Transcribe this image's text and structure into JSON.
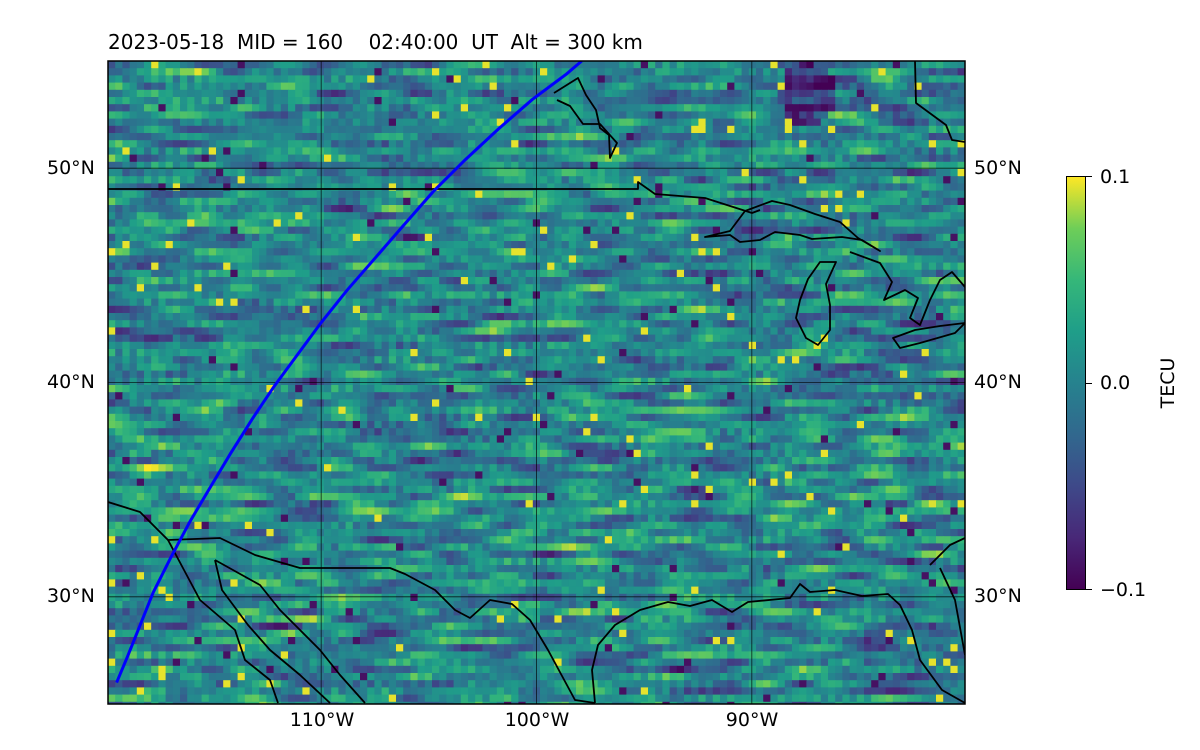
{
  "title": "2023-05-18  MID = 160    02:40:00  UT  Alt = 300 km",
  "map": {
    "extent": {
      "lon_min": -119.9,
      "lon_max": -80.1,
      "lat_min": 25.0,
      "lat_max": 55.0
    },
    "gridlines": {
      "lons": [
        -110,
        -100,
        -90
      ],
      "lats": [
        30,
        40,
        50
      ]
    },
    "lat_labels": [
      "30°N",
      "40°N",
      "50°N"
    ],
    "lon_labels": [
      "110°W",
      "100°W",
      "90°W"
    ],
    "field": "TEC differential (TECU), viridis colormap",
    "colors": {
      "path": "#0000ff",
      "coast": "#000000",
      "low": "#440154",
      "mid": "#21918c",
      "high": "#fde725"
    },
    "satellite_track": [
      [
        -119.5,
        26.0
      ],
      [
        -119.0,
        27.2
      ],
      [
        -118.4,
        28.7
      ],
      [
        -117.8,
        30.2
      ],
      [
        -117.0,
        31.8
      ],
      [
        -116.1,
        33.5
      ],
      [
        -115.1,
        35.2
      ],
      [
        -114.2,
        36.7
      ],
      [
        -113.2,
        38.3
      ],
      [
        -112.2,
        39.8
      ],
      [
        -111.1,
        41.3
      ],
      [
        -110.0,
        42.8
      ],
      [
        -108.8,
        44.3
      ],
      [
        -107.5,
        45.8
      ],
      [
        -106.2,
        47.3
      ],
      [
        -104.8,
        48.9
      ],
      [
        -103.3,
        50.4
      ],
      [
        -101.8,
        51.8
      ],
      [
        -100.2,
        53.2
      ],
      [
        -98.6,
        54.4
      ],
      [
        -97.9,
        55.0
      ]
    ]
  },
  "colorbar": {
    "label": "TECU",
    "min": -0.1,
    "max": 0.1,
    "ticks": [
      {
        "value": 0.1,
        "label": "0.1"
      },
      {
        "value": 0.0,
        "label": "0.0"
      },
      {
        "value": -0.1,
        "label": "−0.1"
      }
    ]
  }
}
